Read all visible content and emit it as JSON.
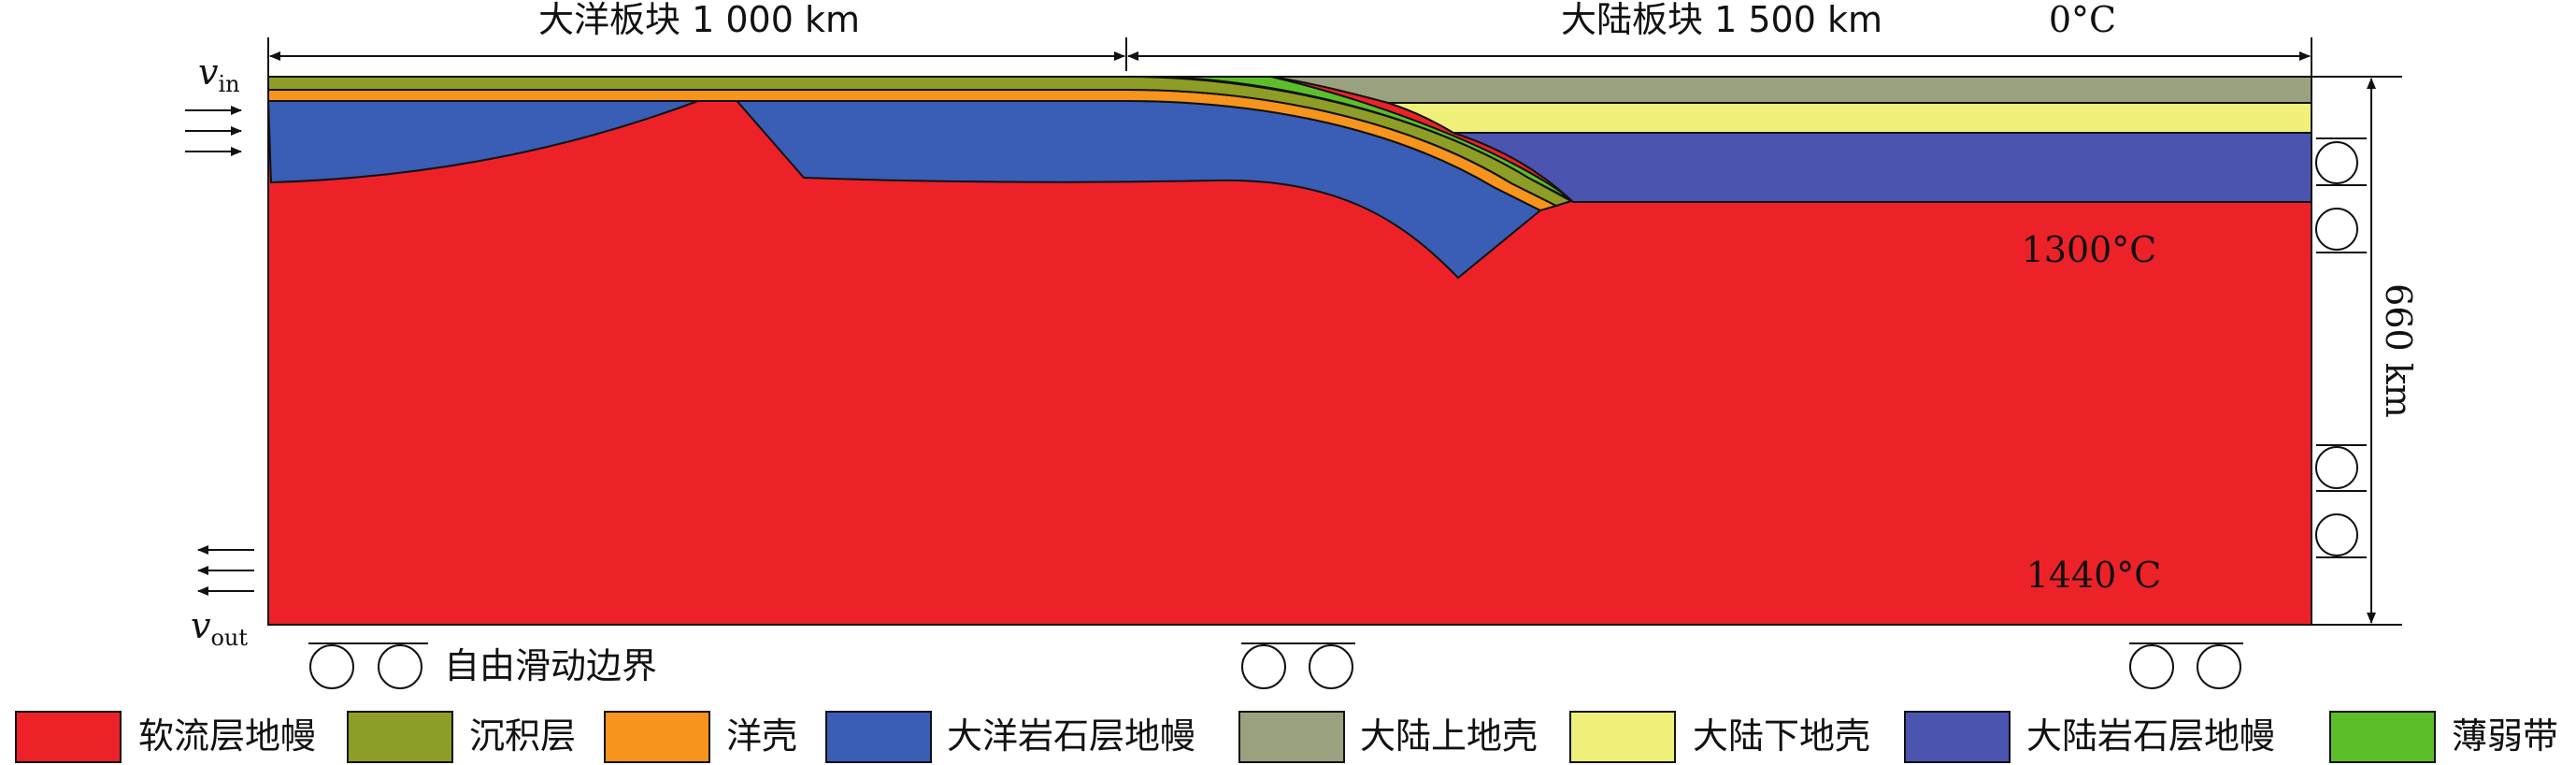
{
  "title": "",
  "dimensions": {
    "oceanic_plate": "大洋板块 1 000 km",
    "continental_plate": "大陆板块 1 500 km",
    "depth": "660 km"
  },
  "temperatures": {
    "surface": "0°C",
    "lithosphere_base": "1300°C",
    "bottom": "1440°C"
  },
  "velocities": {
    "in_symbol": "v",
    "in_sub": "in",
    "out_symbol": "v",
    "out_sub": "out"
  },
  "boundary_label": "自由滑动边界",
  "legend": [
    {
      "label": "软流层地幔",
      "color": "#ED2229"
    },
    {
      "label": "沉积层",
      "color": "#8E9D26"
    },
    {
      "label": "洋壳",
      "color": "#F7941D"
    },
    {
      "label": "大洋岩石层地幔",
      "color": "#3A5DB5"
    },
    {
      "label": "大陆上地壳",
      "color": "#9AA17F"
    },
    {
      "label": "大陆下地壳",
      "color": "#EEF07A"
    },
    {
      "label": "大陆岩石层地幔",
      "color": "#4B54AE"
    },
    {
      "label": "薄弱带",
      "color": "#5CBF2A"
    }
  ]
}
